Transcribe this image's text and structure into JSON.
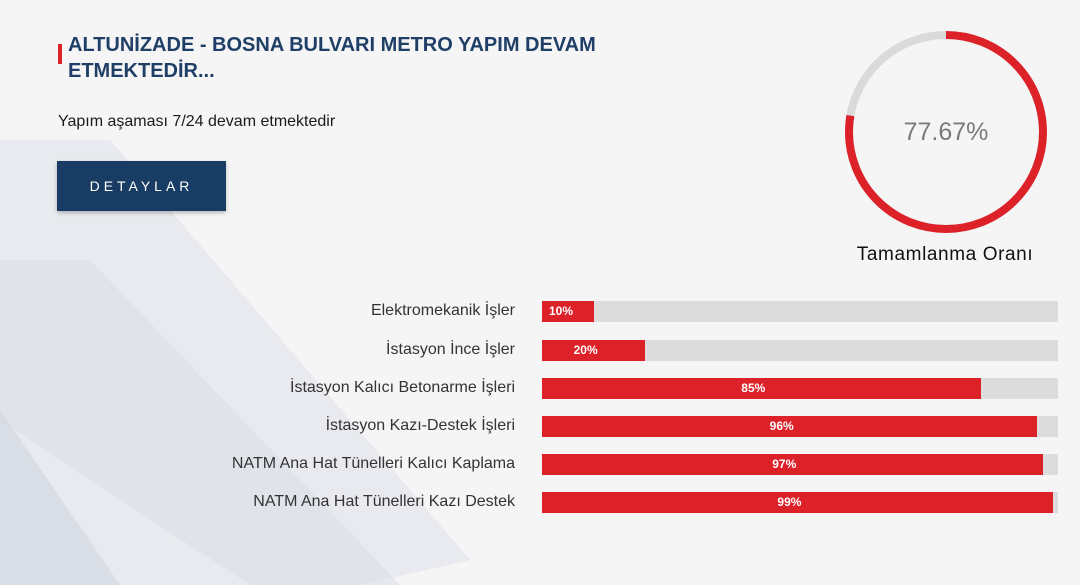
{
  "header": {
    "title": "ALTUNİZADE - BOSNA BULVARI METRO YAPIM DEVAM ETMEKTEDİR...",
    "subtitle": "Yapım aşaması 7/24 devam etmektedir",
    "details_button": "DETAYLAR"
  },
  "completion": {
    "percent_label": "77.67%",
    "percent": 77.67,
    "label": "Tamamlanma Oranı"
  },
  "progress_items": [
    {
      "label": "Elektromekanik İşler",
      "percent": 10,
      "value_label": "10%"
    },
    {
      "label": "İstasyon İnce İşler",
      "percent": 20,
      "value_label": "20%"
    },
    {
      "label": "İstasyon Kalıcı Betonarme İşleri",
      "percent": 85,
      "value_label": "85%"
    },
    {
      "label": "İstasyon Kazı-Destek İşleri",
      "percent": 96,
      "value_label": "96%"
    },
    {
      "label": "NATM Ana Hat Tünelleri Kalıcı Kaplama",
      "percent": 97,
      "value_label": "97%"
    },
    {
      "label": "NATM Ana Hat Tünelleri Kazı Destek",
      "percent": 99,
      "value_label": "99%"
    }
  ],
  "colors": {
    "accent": "#dd2128",
    "title": "#1f3f66",
    "button_bg": "#193c64",
    "track": "#dcdcdc",
    "gauge_track": "#dadada"
  }
}
